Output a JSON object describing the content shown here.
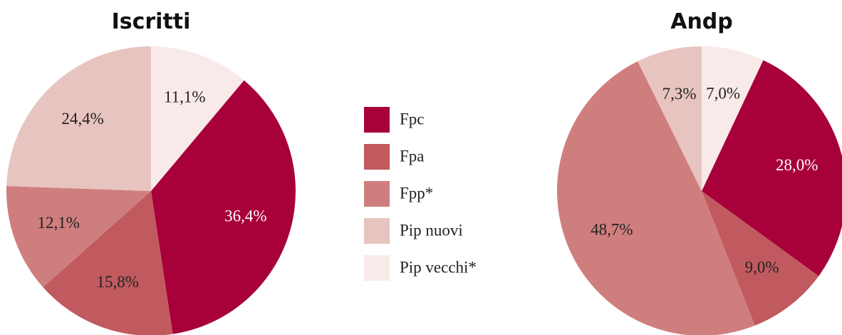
{
  "legend": {
    "categories": [
      "Fpc",
      "Fpa",
      "Fpp*",
      "Pip nuovi",
      "Pip vecchi*"
    ],
    "colors": [
      "#a8003a",
      "#c05a5e",
      "#cf7e7e",
      "#e8c4c0",
      "#f9eaea"
    ]
  },
  "chart_data": [
    {
      "type": "pie",
      "title": "Iscritti",
      "values": [
        36.4,
        15.8,
        12.1,
        24.4,
        11.1
      ],
      "value_labels": [
        "36,4%",
        "15,8%",
        "12,1%",
        "24,4%",
        "11,1%"
      ]
    },
    {
      "type": "pie",
      "title": "Andp",
      "values": [
        28.0,
        9.0,
        48.7,
        7.3,
        7.0
      ],
      "value_labels": [
        "28,0%",
        "9,0%",
        "48,7%",
        "7,3%",
        "7,0%"
      ]
    }
  ]
}
